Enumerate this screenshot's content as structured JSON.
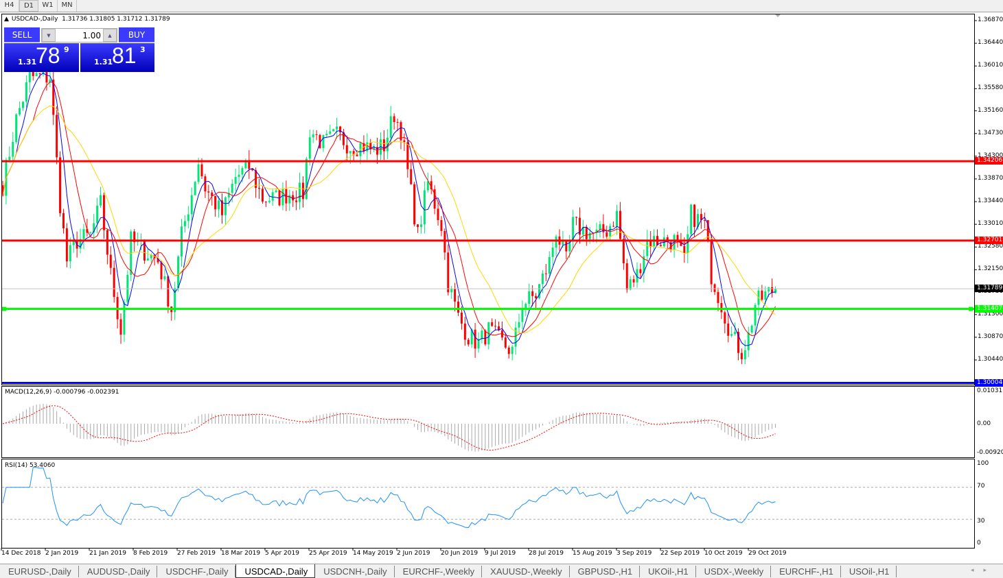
{
  "timeframes": [
    {
      "label": "H4",
      "active": false
    },
    {
      "label": "D1",
      "active": true
    },
    {
      "label": "W1",
      "active": false
    },
    {
      "label": "MN",
      "active": false
    }
  ],
  "chart": {
    "symbol": "USDCAD-,Daily",
    "ohlc": "1.31736 1.31805 1.31712 1.31789",
    "colors": {
      "bull": "#00e676",
      "bear": "#ff0000",
      "ma_fast": "#0000ff",
      "ma_mid": "#ff0000",
      "ma_slow": "#ffd700"
    }
  },
  "one_click": {
    "sell_label": "SELL",
    "buy_label": "BUY",
    "lot": "1.00",
    "sell_price": {
      "prefix": "1.31",
      "big": "78",
      "pip": "9"
    },
    "buy_price": {
      "prefix": "1.31",
      "big": "81",
      "pip": "3"
    }
  },
  "price_axis": [
    "1.36870",
    "1.36440",
    "1.36010",
    "1.35580",
    "1.35160",
    "1.34730",
    "1.34300",
    "1.33870",
    "1.33440",
    "1.33010",
    "1.32580",
    "1.32150",
    "1.31730",
    "1.31300",
    "1.30870",
    "1.30440"
  ],
  "hlines": [
    {
      "label": "1.34206",
      "price": 1.34206,
      "color": "#ff0000"
    },
    {
      "label": "1.32701",
      "price": 1.32701,
      "color": "#ff0000"
    },
    {
      "label": "1.31407",
      "price": 1.31407,
      "color": "#00ff00"
    },
    {
      "label": "1.30004",
      "price": 1.30004,
      "color": "#0000ff"
    }
  ],
  "current_price": {
    "label": "1.31789",
    "price": 1.31789
  },
  "macd": {
    "label": "MACD(12,26,9) -0.000796 -0.002391",
    "axis": [
      "0.010311",
      "0.00",
      "-0.009203"
    ]
  },
  "rsi": {
    "label": "RSI(14) 53.4060",
    "axis": [
      "100",
      "70",
      "30",
      "0"
    ]
  },
  "dates": [
    "14 Dec 2018",
    "2 Jan 2019",
    "21 Jan 2019",
    "8 Feb 2019",
    "27 Feb 2019",
    "18 Mar 2019",
    "5 Apr 2019",
    "25 Apr 2019",
    "14 May 2019",
    "2 Jun 2019",
    "20 Jun 2019",
    "9 Jul 2019",
    "28 Jul 2019",
    "15 Aug 2019",
    "3 Sep 2019",
    "22 Sep 2019",
    "10 Oct 2019",
    "29 Oct 2019"
  ],
  "chart_data": {
    "type": "candlestick",
    "close_path": [
      [
        0,
        1.3375
      ],
      [
        4,
        1.35
      ],
      [
        8,
        1.358
      ],
      [
        14,
        1.358
      ],
      [
        17,
        1.334
      ],
      [
        19,
        1.3232
      ],
      [
        22,
        1.327
      ],
      [
        26,
        1.328
      ],
      [
        29,
        1.334
      ],
      [
        32,
        1.3205
      ],
      [
        35,
        1.31
      ],
      [
        38,
        1.327
      ],
      [
        42,
        1.325
      ],
      [
        46,
        1.3232
      ],
      [
        50,
        1.314
      ],
      [
        53,
        1.328
      ],
      [
        56,
        1.336
      ],
      [
        58,
        1.342
      ],
      [
        60,
        1.337
      ],
      [
        65,
        1.332
      ],
      [
        69,
        1.339
      ],
      [
        73,
        1.341
      ],
      [
        77,
        1.335
      ],
      [
        81,
        1.335
      ],
      [
        85,
        1.336
      ],
      [
        89,
        1.336
      ],
      [
        91,
        1.348
      ],
      [
        95,
        1.3453
      ],
      [
        99,
        1.347
      ],
      [
        103,
        1.345
      ],
      [
        107,
        1.345
      ],
      [
        110,
        1.344
      ],
      [
        113,
        1.345
      ],
      [
        116,
        1.351
      ],
      [
        118,
        1.348
      ],
      [
        121,
        1.336
      ],
      [
        123,
        1.328
      ],
      [
        126,
        1.338
      ],
      [
        130,
        1.33
      ],
      [
        132,
        1.319
      ],
      [
        135,
        1.3125
      ],
      [
        138,
        1.3089
      ],
      [
        141,
        1.3076
      ],
      [
        144,
        1.31
      ],
      [
        148,
        1.3076
      ],
      [
        151,
        1.306
      ],
      [
        154,
        1.315
      ],
      [
        158,
        1.3167
      ],
      [
        162,
        1.323
      ],
      [
        164,
        1.329
      ],
      [
        167,
        1.323
      ],
      [
        169,
        1.33
      ],
      [
        172,
        1.329
      ],
      [
        176,
        1.328
      ],
      [
        179,
        1.329
      ],
      [
        182,
        1.332
      ],
      [
        185,
        1.3177
      ],
      [
        188,
        1.3206
      ],
      [
        191,
        1.327
      ],
      [
        195,
        1.327
      ],
      [
        199,
        1.327
      ],
      [
        202,
        1.323
      ],
      [
        204,
        1.332
      ],
      [
        208,
        1.33
      ],
      [
        210,
        1.3206
      ],
      [
        213,
        1.315
      ],
      [
        216,
        1.3089
      ],
      [
        219,
        1.306
      ],
      [
        221,
        1.3089
      ],
      [
        223,
        1.315
      ],
      [
        226,
        1.3167
      ],
      [
        229,
        1.3179
      ]
    ]
  },
  "tabs": [
    {
      "label": "EURUSD-,Daily"
    },
    {
      "label": "AUDUSD-,Daily"
    },
    {
      "label": "USDCHF-,Daily"
    },
    {
      "label": "USDCAD-,Daily",
      "active": true
    },
    {
      "label": "USDCNH-,Daily"
    },
    {
      "label": "EURCHF-,Weekly"
    },
    {
      "label": "XAUUSD-,Weekly"
    },
    {
      "label": "GBPUSD-,H1"
    },
    {
      "label": "UKOil-,H1"
    },
    {
      "label": "USDX-,Weekly"
    },
    {
      "label": "EURCHF-,H1"
    },
    {
      "label": "USOil-,H1"
    }
  ],
  "tab_nav": "◂▸"
}
